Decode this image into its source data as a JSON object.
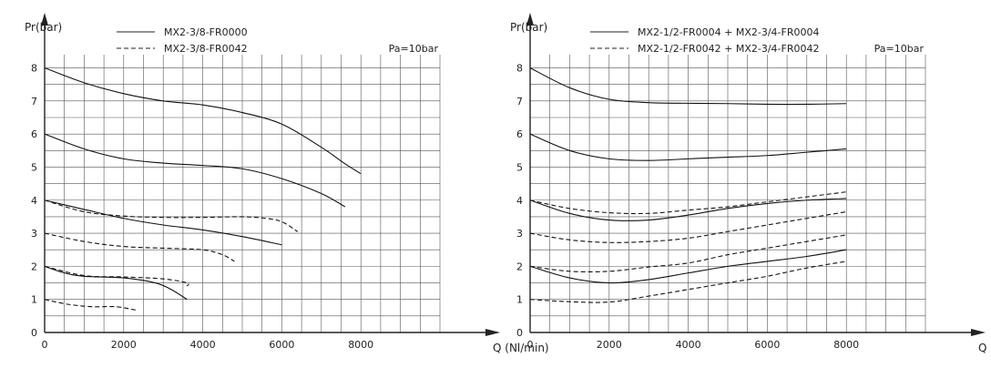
{
  "chart_data": [
    {
      "type": "line",
      "ylabel": "Pr(bar)",
      "xlabel": "Q (Nl/min)",
      "annotation": "Pa=10bar",
      "xlim": [
        0,
        10000
      ],
      "ylim": [
        0,
        8.4
      ],
      "x_ticks": [
        0,
        2000,
        4000,
        6000,
        8000
      ],
      "y_ticks": [
        0,
        1,
        2,
        3,
        4,
        5,
        6,
        7,
        8
      ],
      "grid": true,
      "legend_position": "top-left",
      "legend": [
        {
          "label": "MX2-3/8-FR0000",
          "style": "solid"
        },
        {
          "label": "MX2-3/8-FR0042",
          "style": "dashed"
        }
      ],
      "series": [
        {
          "style": "solid",
          "points": [
            [
              0,
              8
            ],
            [
              1000,
              7.55
            ],
            [
              2000,
              7.22
            ],
            [
              3000,
              7.0
            ],
            [
              4000,
              6.88
            ],
            [
              5000,
              6.65
            ],
            [
              6000,
              6.3
            ],
            [
              7000,
              5.6
            ],
            [
              7600,
              5.1
            ],
            [
              8000,
              4.8
            ]
          ]
        },
        {
          "style": "solid",
          "points": [
            [
              0,
              6
            ],
            [
              1000,
              5.55
            ],
            [
              2000,
              5.25
            ],
            [
              3000,
              5.12
            ],
            [
              4000,
              5.05
            ],
            [
              5000,
              4.95
            ],
            [
              6000,
              4.65
            ],
            [
              7000,
              4.2
            ],
            [
              7600,
              3.8
            ]
          ]
        },
        {
          "style": "solid",
          "points": [
            [
              0,
              4
            ],
            [
              1000,
              3.72
            ],
            [
              2000,
              3.45
            ],
            [
              3000,
              3.25
            ],
            [
              4000,
              3.1
            ],
            [
              5000,
              2.9
            ],
            [
              6000,
              2.65
            ]
          ]
        },
        {
          "style": "solid",
          "points": [
            [
              0,
              2
            ],
            [
              500,
              1.8
            ],
            [
              1000,
              1.7
            ],
            [
              2000,
              1.65
            ],
            [
              2800,
              1.5
            ],
            [
              3200,
              1.3
            ],
            [
              3600,
              1.0
            ]
          ]
        },
        {
          "style": "dashed",
          "points": [
            [
              0,
              4
            ],
            [
              1000,
              3.65
            ],
            [
              2000,
              3.52
            ],
            [
              3000,
              3.48
            ],
            [
              4000,
              3.48
            ],
            [
              5000,
              3.5
            ],
            [
              5600,
              3.45
            ],
            [
              6000,
              3.35
            ],
            [
              6400,
              3.05
            ]
          ]
        },
        {
          "style": "dashed",
          "points": [
            [
              0,
              3
            ],
            [
              1000,
              2.75
            ],
            [
              2000,
              2.6
            ],
            [
              3000,
              2.55
            ],
            [
              4000,
              2.5
            ],
            [
              4500,
              2.35
            ],
            [
              4800,
              2.15
            ]
          ]
        },
        {
          "style": "dashed",
          "points": [
            [
              0,
              2
            ],
            [
              1000,
              1.72
            ],
            [
              2000,
              1.68
            ],
            [
              3000,
              1.62
            ],
            [
              3600,
              1.5
            ],
            [
              3600,
              1.4
            ]
          ]
        },
        {
          "style": "dashed",
          "points": [
            [
              0,
              1
            ],
            [
              600,
              0.85
            ],
            [
              1200,
              0.78
            ],
            [
              1800,
              0.78
            ],
            [
              2200,
              0.7
            ],
            [
              2300,
              0.68
            ]
          ]
        }
      ]
    },
    {
      "type": "line",
      "ylabel": "Pr(bar)",
      "xlabel": "Q (Nl/min)",
      "annotation": "Pa=10bar",
      "xlim": [
        0,
        10000
      ],
      "ylim": [
        0,
        8.4
      ],
      "x_ticks": [
        0,
        2000,
        4000,
        6000,
        8000
      ],
      "y_ticks": [
        0,
        1,
        2,
        3,
        4,
        5,
        6,
        7,
        8
      ],
      "grid": true,
      "legend_position": "top-left",
      "legend": [
        {
          "label": "MX2-1/2-FR0004 + MX2-3/4-FR0004",
          "style": "solid"
        },
        {
          "label": "MX2-1/2-FR0042 + MX2-3/4-FR0042",
          "style": "dashed"
        }
      ],
      "series": [
        {
          "style": "solid",
          "points": [
            [
              0,
              8
            ],
            [
              1000,
              7.4
            ],
            [
              2000,
              7.05
            ],
            [
              3000,
              6.95
            ],
            [
              4000,
              6.93
            ],
            [
              5000,
              6.92
            ],
            [
              6000,
              6.9
            ],
            [
              7000,
              6.9
            ],
            [
              8000,
              6.92
            ]
          ]
        },
        {
          "style": "solid",
          "points": [
            [
              0,
              6
            ],
            [
              1000,
              5.5
            ],
            [
              2000,
              5.25
            ],
            [
              3000,
              5.2
            ],
            [
              4000,
              5.25
            ],
            [
              5000,
              5.3
            ],
            [
              6000,
              5.35
            ],
            [
              7000,
              5.45
            ],
            [
              8000,
              5.55
            ]
          ]
        },
        {
          "style": "solid",
          "points": [
            [
              0,
              4
            ],
            [
              1000,
              3.6
            ],
            [
              2000,
              3.4
            ],
            [
              3000,
              3.4
            ],
            [
              4000,
              3.55
            ],
            [
              5000,
              3.75
            ],
            [
              6000,
              3.9
            ],
            [
              7000,
              4.0
            ],
            [
              8000,
              4.05
            ]
          ]
        },
        {
          "style": "solid",
          "points": [
            [
              0,
              2
            ],
            [
              1000,
              1.65
            ],
            [
              2000,
              1.5
            ],
            [
              3000,
              1.6
            ],
            [
              4000,
              1.8
            ],
            [
              5000,
              2.0
            ],
            [
              6000,
              2.15
            ],
            [
              7000,
              2.3
            ],
            [
              8000,
              2.5
            ]
          ]
        },
        {
          "style": "dashed",
          "points": [
            [
              0,
              4
            ],
            [
              1000,
              3.75
            ],
            [
              2000,
              3.62
            ],
            [
              3000,
              3.6
            ],
            [
              4000,
              3.7
            ],
            [
              5000,
              3.8
            ],
            [
              6000,
              3.95
            ],
            [
              7000,
              4.1
            ],
            [
              8000,
              4.25
            ]
          ]
        },
        {
          "style": "dashed",
          "points": [
            [
              0,
              3
            ],
            [
              1000,
              2.8
            ],
            [
              2000,
              2.72
            ],
            [
              3000,
              2.75
            ],
            [
              4000,
              2.85
            ],
            [
              5000,
              3.05
            ],
            [
              6000,
              3.25
            ],
            [
              7000,
              3.45
            ],
            [
              8000,
              3.65
            ]
          ]
        },
        {
          "style": "dashed",
          "points": [
            [
              0,
              2
            ],
            [
              1000,
              1.85
            ],
            [
              2000,
              1.85
            ],
            [
              3000,
              1.98
            ],
            [
              4000,
              2.1
            ],
            [
              5000,
              2.35
            ],
            [
              6000,
              2.55
            ],
            [
              7000,
              2.75
            ],
            [
              8000,
              2.95
            ]
          ]
        },
        {
          "style": "dashed",
          "points": [
            [
              0,
              1
            ],
            [
              1000,
              0.93
            ],
            [
              2000,
              0.92
            ],
            [
              3000,
              1.1
            ],
            [
              4000,
              1.3
            ],
            [
              5000,
              1.5
            ],
            [
              6000,
              1.7
            ],
            [
              7000,
              1.95
            ],
            [
              8000,
              2.15
            ]
          ]
        }
      ]
    }
  ]
}
